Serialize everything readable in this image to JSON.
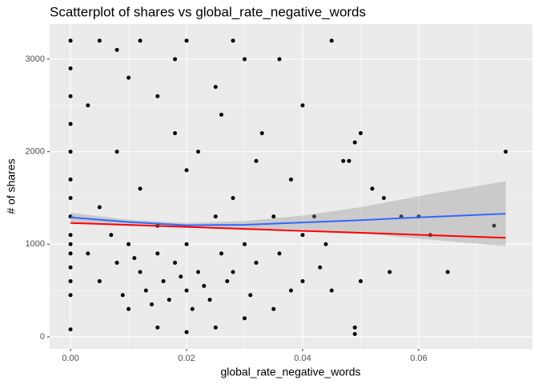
{
  "chart_data": {
    "type": "scatter",
    "title": "Scatterplot of shares vs global_rate_negative_words",
    "x_label": "global_rate_negative_words",
    "y_label": "# of shares",
    "xlim": [
      -0.0036,
      0.0796
    ],
    "ylim": [
      -130,
      3380
    ],
    "xticks": [
      {
        "value": 0,
        "label": "0.00"
      },
      0.02,
      0.04,
      0.06
    ],
    "yticks": [
      0,
      1000,
      2000,
      3000
    ],
    "grid": true,
    "color": "#000000",
    "x": [
      0,
      0,
      0,
      0,
      0,
      0,
      0,
      0,
      0,
      0,
      0,
      0,
      0,
      0,
      0,
      0.005,
      0.012,
      0.02,
      0.028,
      0.045,
      0.008,
      0.018,
      0.03,
      0.036,
      0.01,
      0.025,
      0.04,
      0.05,
      0.049,
      0.048,
      0.047,
      0.052,
      0.054,
      0.057,
      0.06,
      0.062,
      0.075,
      0.073,
      0.065,
      0.055,
      0.05,
      0.049,
      0.049,
      0.045,
      0.04,
      0.035,
      0.03,
      0.025,
      0.02,
      0.015,
      0.01,
      0.005,
      0.003,
      0.008,
      0.012,
      0.016,
      0.02,
      0.024,
      0.028,
      0.032,
      0.036,
      0.015,
      0.018,
      0.022,
      0.026,
      0.013,
      0.017,
      0.021,
      0.01,
      0.02,
      0.03,
      0.015,
      0.025,
      0.035,
      0.005,
      0.012,
      0.02,
      0.028,
      0.008,
      0.018,
      0.026,
      0.032,
      0.038,
      0.042,
      0.044,
      0.04,
      0.003,
      0.015,
      0.022,
      0.033,
      0.007,
      0.011,
      0.019,
      0.023,
      0.027,
      0.014,
      0.009,
      0.031,
      0.038,
      0.043
    ],
    "y": [
      80,
      450,
      600,
      750,
      900,
      1000,
      1100,
      1300,
      1500,
      1700,
      2000,
      2300,
      2600,
      2900,
      3200,
      3200,
      3200,
      3200,
      3200,
      3200,
      3100,
      3000,
      3000,
      3000,
      2800,
      2700,
      2500,
      2200,
      2100,
      1900,
      1900,
      1600,
      1500,
      1300,
      1300,
      1100,
      2000,
      1200,
      700,
      700,
      600,
      100,
      30,
      500,
      600,
      300,
      200,
      100,
      50,
      100,
      300,
      600,
      900,
      800,
      700,
      600,
      500,
      400,
      700,
      800,
      900,
      900,
      800,
      700,
      900,
      500,
      400,
      300,
      1000,
      1000,
      1000,
      1200,
      1300,
      1300,
      1400,
      1600,
      1800,
      1500,
      2000,
      2200,
      2400,
      1900,
      1700,
      1300,
      1000,
      1100,
      2500,
      2600,
      2000,
      2200,
      1100,
      850,
      650,
      550,
      600,
      350,
      450,
      450,
      500,
      750
    ],
    "smooths": [
      {
        "color": "#3366FF",
        "band_color": "#999999",
        "x": [
          0,
          0.01,
          0.02,
          0.03,
          0.04,
          0.05,
          0.06,
          0.075
        ],
        "values": [
          1290,
          1240,
          1205,
          1210,
          1235,
          1260,
          1290,
          1330
        ],
        "band_lower": [
          1240,
          1215,
          1180,
          1170,
          1160,
          1120,
          1060,
          980
        ],
        "band_upper": [
          1340,
          1265,
          1230,
          1250,
          1310,
          1400,
          1520,
          1680
        ]
      },
      {
        "color": "#FF0000",
        "x": [
          0,
          0.075
        ],
        "values": [
          1230,
          1070
        ]
      }
    ]
  }
}
